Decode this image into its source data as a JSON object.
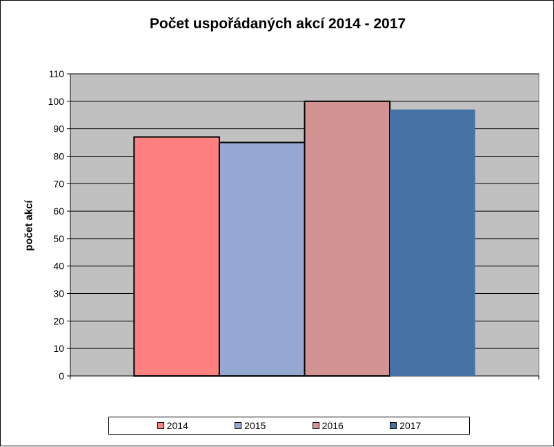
{
  "chart_data": {
    "type": "bar",
    "title": "Počet uspořádaných akcí 2014 - 2017",
    "ylabel": "počet akcí",
    "xlabel": "",
    "ylim": [
      0,
      110
    ],
    "yticks": [
      0,
      10,
      20,
      30,
      40,
      50,
      60,
      70,
      80,
      90,
      100,
      110
    ],
    "grid": true,
    "legend_position": "bottom",
    "series": [
      {
        "name": "2014",
        "values": [
          87
        ],
        "color": "#FF8080"
      },
      {
        "name": "2015",
        "values": [
          85
        ],
        "color": "#95A8D1"
      },
      {
        "name": "2016",
        "values": [
          100
        ],
        "color": "#D39393"
      },
      {
        "name": "2017",
        "values": [
          97
        ],
        "color": "#4573A7"
      }
    ],
    "plot_background": "#C0C0C0"
  }
}
